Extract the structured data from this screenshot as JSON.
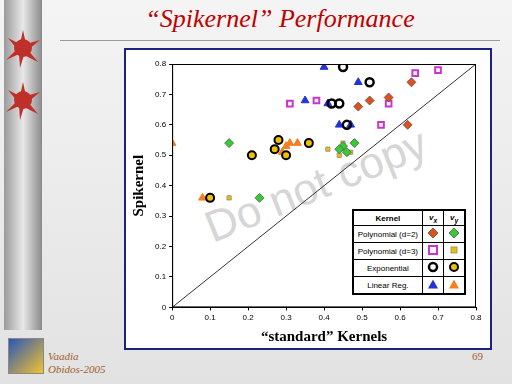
{
  "slide": {
    "title": "“Spikernel” Performance",
    "watermark": "Do not copy",
    "footer": [
      "Vaadia",
      "Obidos-2005"
    ],
    "page_number": "69"
  },
  "chart_data": {
    "type": "scatter",
    "xlabel": "“standard” Kernels",
    "ylabel": "Spikernel",
    "xlim": [
      0,
      0.8
    ],
    "ylim": [
      0,
      0.8
    ],
    "xticks": [
      0,
      0.1,
      0.2,
      0.3,
      0.4,
      0.5,
      0.6,
      0.7,
      0.8
    ],
    "yticks": [
      0,
      0.1,
      0.2,
      0.3,
      0.4,
      0.5,
      0.6,
      0.7,
      0.8
    ],
    "grid": false,
    "legend": "lower right",
    "legend_header": "Kernel",
    "components": [
      {
        "symbol": "v",
        "subscript": "x"
      },
      {
        "symbol": "v",
        "subscript": "y"
      }
    ],
    "reference_line": {
      "x": [
        0,
        0.8
      ],
      "y": [
        0,
        0.8
      ]
    },
    "series": [
      {
        "name": "Polynomial (d=2)",
        "points": [
          {
            "color": "#e0501a",
            "marker": "diamond",
            "x": [
              0.49,
              0.57,
              0.63,
              0.52,
              0.62
            ],
            "y": [
              0.66,
              0.69,
              0.74,
              0.68,
              0.6
            ]
          },
          {
            "color": "#33cc33",
            "marker": "diamond",
            "x": [
              0.15,
              0.23,
              0.45,
              0.46,
              0.48,
              0.44
            ],
            "y": [
              0.54,
              0.36,
              0.53,
              0.51,
              0.54,
              0.52
            ]
          }
        ]
      },
      {
        "name": "Polynomial (d=3)",
        "points": [
          {
            "color": "#cc33cc",
            "marker": "open_square",
            "x": [
              0.31,
              0.38,
              0.57,
              0.55,
              0.64,
              0.7
            ],
            "y": [
              0.67,
              0.68,
              0.67,
              0.6,
              0.77,
              0.78
            ]
          },
          {
            "color": "#f0c000",
            "marker": "small_square",
            "x": [
              0.15,
              0.41,
              0.44,
              0.45,
              0.47
            ],
            "y": [
              0.36,
              0.52,
              0.5,
              0.54,
              0.51
            ]
          }
        ]
      },
      {
        "name": "Exponential",
        "points": [
          {
            "color": "#000000",
            "marker": "ring",
            "x": [
              0.45,
              0.52,
              0.46,
              0.42,
              0.44
            ],
            "y": [
              0.79,
              0.74,
              0.6,
              0.67,
              0.67
            ]
          },
          {
            "color": "#000000",
            "marker": "ring_dot",
            "x": [
              0.1,
              0.21,
              0.27,
              0.28,
              0.3,
              0.36
            ],
            "y": [
              0.36,
              0.5,
              0.52,
              0.55,
              0.5,
              0.54
            ]
          }
        ]
      },
      {
        "name": "Linear Reg.",
        "points": [
          {
            "color": "#2233dd",
            "marker": "triangle",
            "x": [
              0.4,
              0.49,
              0.35,
              0.41,
              0.44,
              0.47
            ],
            "y": [
              0.79,
              0.74,
              0.68,
              0.67,
              0.6,
              0.6
            ]
          },
          {
            "color": "#f08020",
            "marker": "triangle",
            "x": [
              0.0,
              0.08,
              0.29,
              0.3,
              0.33,
              0.31
            ],
            "y": [
              0.54,
              0.36,
              0.51,
              0.53,
              0.54,
              0.54
            ]
          }
        ]
      }
    ]
  }
}
